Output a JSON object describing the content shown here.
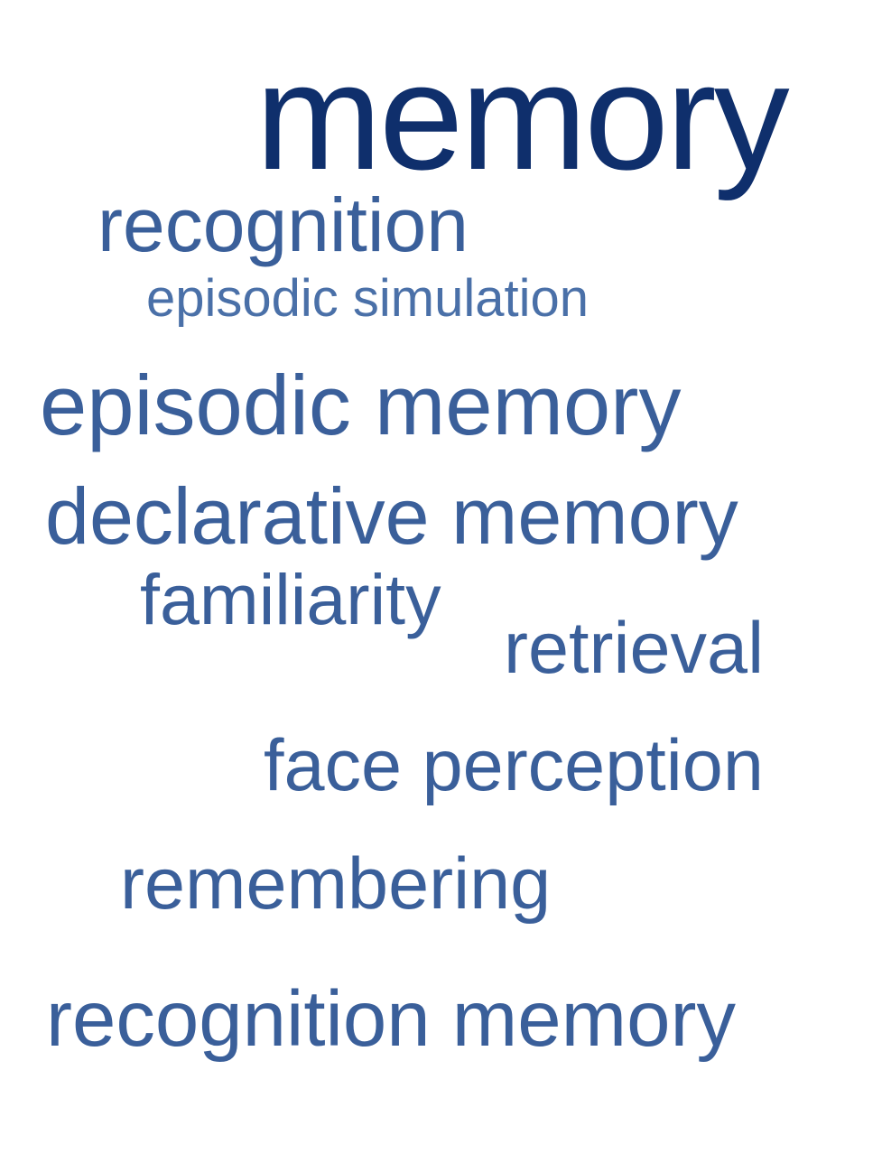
{
  "word_cloud": {
    "colors": {
      "dark": "#0f2f6c",
      "medium": "#3a5f9a",
      "light": "#4a70a8"
    },
    "words": [
      {
        "id": "memory",
        "text": "memory",
        "weight": 1.0,
        "color": "#0f2f6c"
      },
      {
        "id": "recognition",
        "text": "recognition",
        "weight": 0.5,
        "color": "#3a5f9a"
      },
      {
        "id": "episodic-simulation",
        "text": "episodic simulation",
        "weight": 0.35,
        "color": "#4a70a8"
      },
      {
        "id": "episodic-memory",
        "text": "episodic memory",
        "weight": 0.56,
        "color": "#3a5f9a"
      },
      {
        "id": "declarative-memory",
        "text": "declarative memory",
        "weight": 0.52,
        "color": "#3a5f9a"
      },
      {
        "id": "familiarity",
        "text": "familiarity",
        "weight": 0.47,
        "color": "#3a5f9a"
      },
      {
        "id": "retrieval",
        "text": "retrieval",
        "weight": 0.48,
        "color": "#3a5f9a"
      },
      {
        "id": "face-perception",
        "text": "face perception",
        "weight": 0.48,
        "color": "#3a5f9a"
      },
      {
        "id": "remembering",
        "text": "remembering",
        "weight": 0.48,
        "color": "#3a5f9a"
      },
      {
        "id": "recognition-memory",
        "text": "recognition memory",
        "weight": 0.52,
        "color": "#3a5f9a"
      }
    ]
  }
}
